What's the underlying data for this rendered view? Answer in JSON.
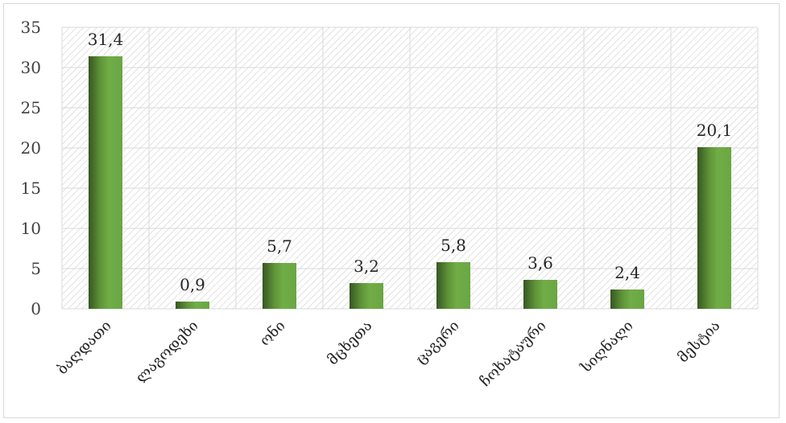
{
  "chart_data": {
    "type": "bar",
    "categories": [
      "ბაღდათი",
      "ლაგოდეხი",
      "ონი",
      "მცხეთა",
      "ცაგერი",
      "ჩოხატაური",
      "სიღნაღი",
      "მესტია"
    ],
    "values": [
      31.4,
      0.9,
      5.7,
      3.2,
      5.8,
      3.6,
      2.4,
      20.1
    ],
    "data_labels": [
      "31,4",
      "0,9",
      "5,7",
      "3,2",
      "5,8",
      "3,6",
      "2,4",
      "20,1"
    ],
    "ylim": [
      0,
      35
    ],
    "yticks": [
      0,
      5,
      10,
      15,
      20,
      25,
      30,
      35
    ],
    "title": "",
    "xlabel": "",
    "ylabel": "",
    "grid": true,
    "legend": "none",
    "colors": {
      "bar_light": "#70ad47",
      "bar_dark": "#375623",
      "grid": "#d9d9d9",
      "hatch": "#c9c9c9"
    }
  }
}
